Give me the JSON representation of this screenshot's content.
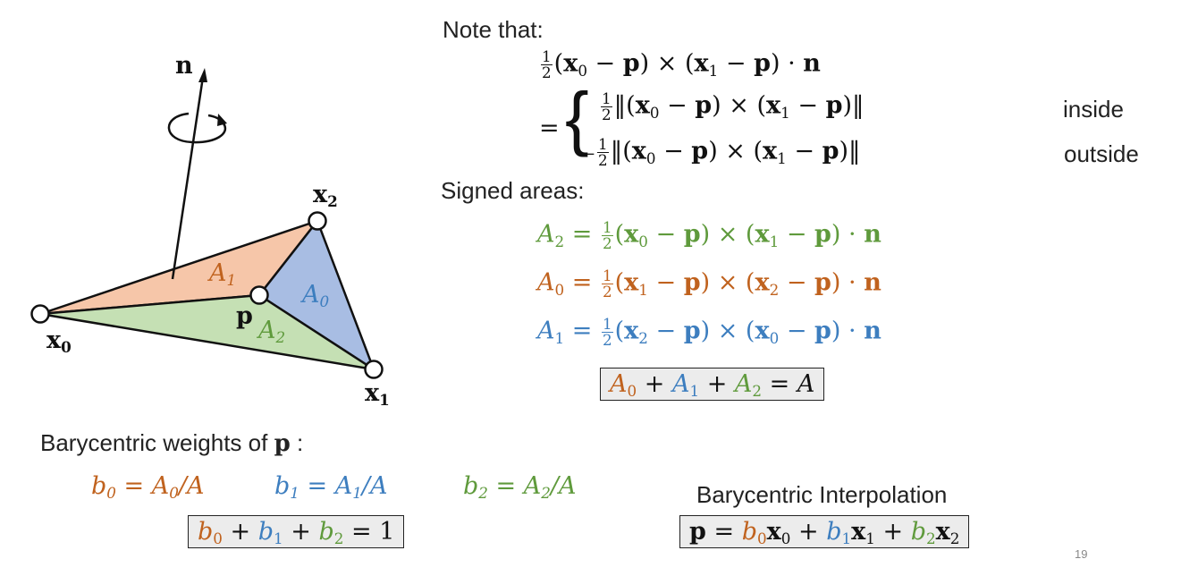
{
  "colors": {
    "orange": "#c0621e",
    "blue": "#3d7ebf",
    "green": "#5f9a3c",
    "fill_orange": "#f6c6a9",
    "fill_blue": "#a8bde3",
    "fill_green": "#c5e0b4",
    "box": "#ececec"
  },
  "figure": {
    "normal": "n",
    "p": "p",
    "x0": "x",
    "x0_sub": "0",
    "x1": "x",
    "x1_sub": "1",
    "x2": "x",
    "x2_sub": "2",
    "a0": "A",
    "a0_sub": "0",
    "a1": "A",
    "a1_sub": "1",
    "a2": "A",
    "a2_sub": "2",
    "rotation_icon": "rotation-arrow-icon"
  },
  "note": {
    "heading": "Note that:",
    "inside": "inside",
    "outside": "outside",
    "minus": "−"
  },
  "signed": {
    "heading": "Signed areas:"
  },
  "bary": {
    "heading": "Barycentric weights of",
    "heading_p": "p",
    "heading_colon": " :",
    "interp_heading": "Barycentric Interpolation"
  },
  "page_number": "19"
}
